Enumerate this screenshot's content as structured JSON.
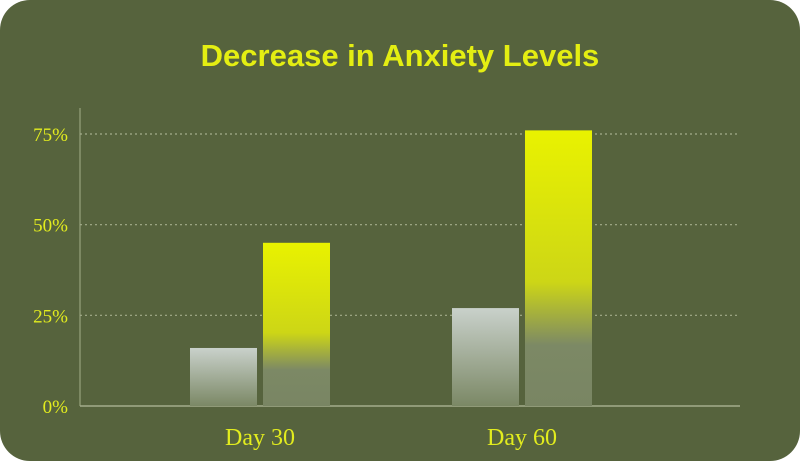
{
  "chart_data": {
    "type": "bar",
    "title": "Decrease in Anxiety Levels",
    "categories": [
      "Day 30",
      "Day 60"
    ],
    "series": [
      {
        "values": [
          16,
          27
        ]
      },
      {
        "values": [
          45,
          76
        ]
      }
    ],
    "ylim": [
      0,
      75
    ],
    "yticks": [
      "0%",
      "25%",
      "50%",
      "75%"
    ],
    "grid": true
  },
  "colors": {
    "background": "#56633d",
    "accent": "#e4ee12",
    "bar_light": "#c8d0c9",
    "bar_fade": "#7c8965"
  }
}
